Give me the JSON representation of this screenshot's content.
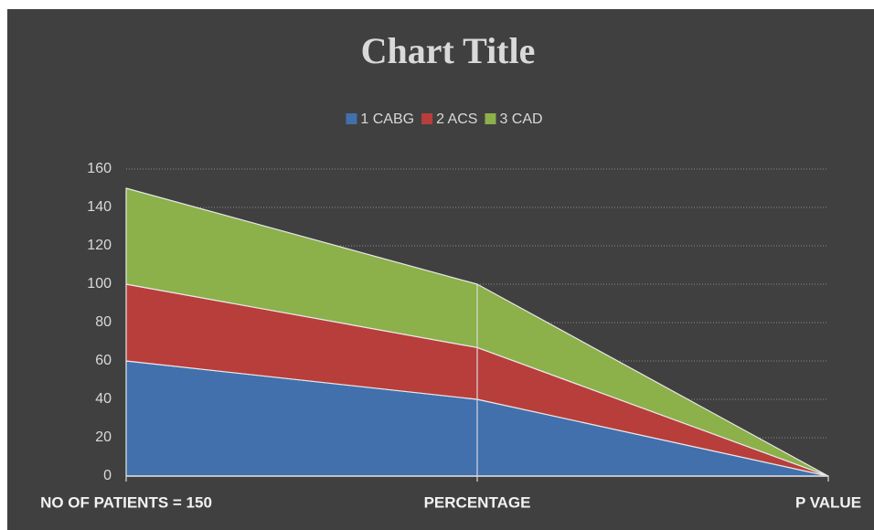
{
  "chart_data": {
    "type": "area",
    "stacked": true,
    "title": "Chart Title",
    "categories": [
      "NO OF PATIENTS = 150",
      "PERCENTAGE",
      "P VALUE"
    ],
    "series": [
      {
        "name": "1 CABG",
        "color": "#4170ad",
        "values": [
          60,
          40,
          0
        ]
      },
      {
        "name": "2 ACS",
        "color": "#b83e3b",
        "values": [
          40,
          27,
          0
        ]
      },
      {
        "name": "3 CAD",
        "color": "#8cb04a",
        "values": [
          50,
          33,
          0
        ]
      }
    ],
    "ylim": [
      0,
      160
    ],
    "yticks": [
      0,
      20,
      40,
      60,
      80,
      100,
      120,
      140,
      160
    ],
    "grid": true,
    "legend": "top"
  }
}
